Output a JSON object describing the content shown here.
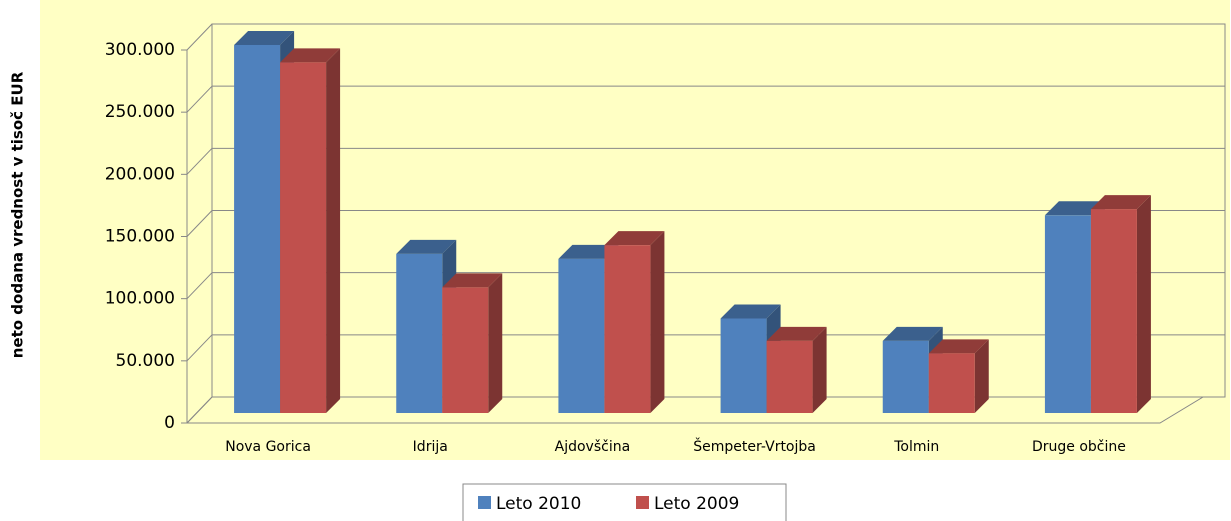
{
  "chart_data": {
    "type": "bar3d",
    "y_label": "neto dodana vrednost v tisoč EUR",
    "categories": [
      "Nova Gorica",
      "Idrija",
      "Ajdovščina",
      "Šempeter-Vrtojba",
      "Tolmin",
      "Druge občine"
    ],
    "series": [
      {
        "name": "Leto 2010",
        "color": "#4f81bd",
        "values": [
          296000,
          128000,
          124000,
          76000,
          58000,
          159000
        ]
      },
      {
        "name": "Leto 2009",
        "color": "#c0504d",
        "values": [
          282000,
          101000,
          135000,
          58000,
          48000,
          164000
        ]
      }
    ],
    "ylim": [
      0,
      300000
    ],
    "yticks": [
      {
        "value": 0,
        "label": "0"
      },
      {
        "value": 50000,
        "label": "50.000"
      },
      {
        "value": 100000,
        "label": "100.000"
      },
      {
        "value": 150000,
        "label": "150.000"
      },
      {
        "value": 200000,
        "label": "200.000"
      },
      {
        "value": 250000,
        "label": "250.000"
      },
      {
        "value": 300000,
        "label": "300.000"
      }
    ],
    "grid": true,
    "legend": "bottom"
  }
}
